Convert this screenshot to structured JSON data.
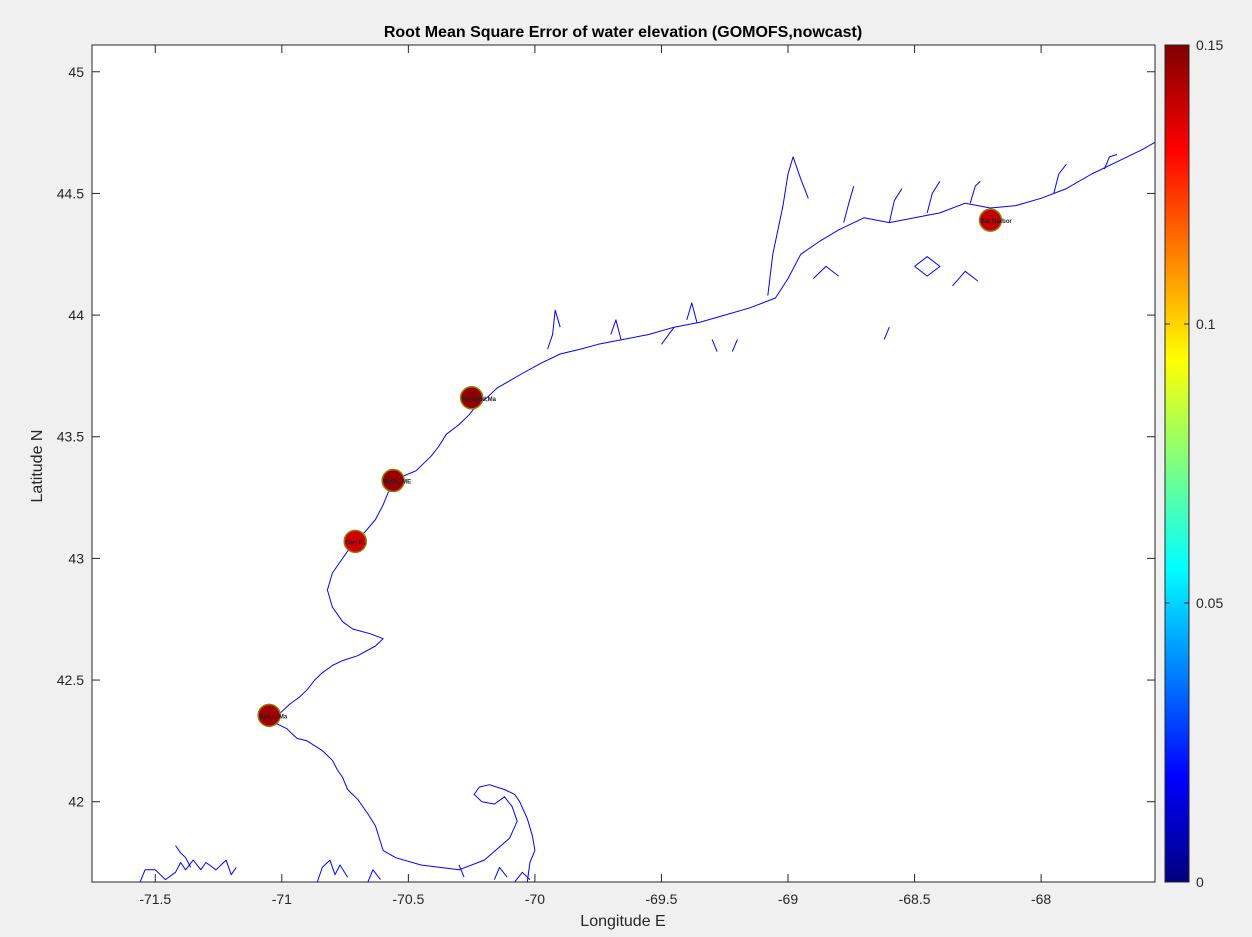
{
  "chart_data": {
    "type": "scatter",
    "title": "Root Mean Square Error of water elevation  (GOMOFS,nowcast)",
    "xlabel": "Longitude E",
    "ylabel": "Latitude N",
    "xlim": [
      -71.75,
      -67.55
    ],
    "ylim": [
      41.67,
      45.11
    ],
    "xticks": [
      -71.5,
      -71,
      -70.5,
      -70,
      -69.5,
      -69,
      -68.5,
      -68
    ],
    "xtick_labels": [
      "-71.5",
      "-71",
      "-70.5",
      "-70",
      "-69.5",
      "-69",
      "-68.5",
      "-68"
    ],
    "yticks": [
      42,
      42.5,
      43,
      43.5,
      44,
      44.5,
      45
    ],
    "ytick_labels": [
      "42",
      "42.5",
      "43",
      "43.5",
      "44",
      "44.5",
      "45"
    ],
    "grid": false,
    "colorbar": {
      "colormap": "jet",
      "clim": [
        0,
        0.15
      ],
      "ticks": [
        0,
        0.05,
        0.1,
        0.15
      ],
      "tick_labels": [
        "0",
        "0.05",
        "0.1",
        "0.15"
      ]
    },
    "stations": [
      {
        "label": "Bos..., Ma",
        "lon": -71.05,
        "lat": 42.355,
        "rmse": 0.145
      },
      {
        "label": "Fort P...",
        "lon": -70.71,
        "lat": 43.07,
        "rmse": 0.138
      },
      {
        "label": "Wells, ME",
        "lon": -70.56,
        "lat": 43.32,
        "rmse": 0.146
      },
      {
        "label": "Portland,Ma",
        "lon": -70.25,
        "lat": 43.66,
        "rmse": 0.147
      },
      {
        "label": "Bar Harbor",
        "lon": -68.2,
        "lat": 44.39,
        "rmse": 0.14
      }
    ],
    "coastline_color": "#0000ff",
    "coastline": [
      [
        [
          -71.56,
          41.67
        ],
        [
          -71.54,
          41.72
        ],
        [
          -71.5,
          41.72
        ],
        [
          -71.46,
          41.68
        ],
        [
          -71.42,
          41.71
        ],
        [
          -71.4,
          41.75
        ],
        [
          -71.38,
          41.72
        ],
        [
          -71.35,
          41.76
        ],
        [
          -71.32,
          41.72
        ],
        [
          -71.3,
          41.75
        ],
        [
          -71.26,
          41.72
        ],
        [
          -71.22,
          41.76
        ],
        [
          -71.2,
          41.7
        ],
        [
          -71.18,
          41.73
        ]
      ],
      [
        [
          -71.42,
          41.82
        ],
        [
          -71.4,
          41.79
        ],
        [
          -71.38,
          41.77
        ],
        [
          -71.36,
          41.73
        ]
      ],
      [
        [
          -70.86,
          41.67
        ],
        [
          -70.84,
          41.73
        ],
        [
          -70.81,
          41.76
        ],
        [
          -70.79,
          41.7
        ],
        [
          -70.77,
          41.74
        ],
        [
          -70.74,
          41.69
        ]
      ],
      [
        [
          -70.66,
          41.67
        ],
        [
          -70.64,
          41.72
        ],
        [
          -70.61,
          41.68
        ]
      ],
      [
        [
          -70.3,
          41.74
        ],
        [
          -70.28,
          41.69
        ]
      ],
      [
        [
          -70.16,
          41.68
        ],
        [
          -70.14,
          41.73
        ],
        [
          -70.11,
          41.69
        ]
      ],
      [
        [
          -70.08,
          41.67
        ],
        [
          -70.05,
          41.71
        ],
        [
          -70.02,
          41.68
        ]
      ],
      [
        [
          -70.03,
          41.67
        ],
        [
          -70.02,
          41.75
        ],
        [
          -70.0,
          41.8
        ],
        [
          -70.01,
          41.86
        ],
        [
          -70.03,
          41.93
        ],
        [
          -70.06,
          42.0
        ],
        [
          -70.08,
          42.03
        ],
        [
          -70.12,
          42.05
        ],
        [
          -70.18,
          42.07
        ],
        [
          -70.22,
          42.06
        ],
        [
          -70.24,
          42.03
        ],
        [
          -70.21,
          42.0
        ],
        [
          -70.16,
          41.99
        ],
        [
          -70.12,
          42.02
        ],
        [
          -70.09,
          41.98
        ],
        [
          -70.07,
          41.92
        ],
        [
          -70.1,
          41.85
        ],
        [
          -70.2,
          41.76
        ],
        [
          -70.3,
          41.72
        ],
        [
          -70.45,
          41.74
        ],
        [
          -70.55,
          41.77
        ],
        [
          -70.6,
          41.8
        ],
        [
          -70.63,
          41.9
        ],
        [
          -70.66,
          41.95
        ],
        [
          -70.68,
          41.98
        ],
        [
          -70.7,
          42.01
        ],
        [
          -70.74,
          42.05
        ],
        [
          -70.76,
          42.1
        ],
        [
          -70.78,
          42.13
        ],
        [
          -70.8,
          42.17
        ],
        [
          -70.84,
          42.21
        ],
        [
          -70.9,
          42.25
        ],
        [
          -70.94,
          42.26
        ],
        [
          -70.96,
          42.28
        ],
        [
          -70.98,
          42.3
        ],
        [
          -71.02,
          42.32
        ],
        [
          -71.05,
          42.33
        ],
        [
          -71.03,
          42.35
        ],
        [
          -71.0,
          42.37
        ],
        [
          -70.97,
          42.4
        ],
        [
          -70.93,
          42.43
        ],
        [
          -70.9,
          42.46
        ],
        [
          -70.87,
          42.5
        ],
        [
          -70.84,
          42.53
        ],
        [
          -70.8,
          42.56
        ],
        [
          -70.76,
          42.58
        ],
        [
          -70.7,
          42.6
        ],
        [
          -70.63,
          42.64
        ],
        [
          -70.6,
          42.67
        ],
        [
          -70.65,
          42.69
        ],
        [
          -70.72,
          42.71
        ],
        [
          -70.76,
          42.74
        ],
        [
          -70.8,
          42.8
        ],
        [
          -70.82,
          42.87
        ],
        [
          -70.8,
          42.94
        ],
        [
          -70.76,
          43.0
        ],
        [
          -70.72,
          43.06
        ],
        [
          -70.67,
          43.11
        ],
        [
          -70.63,
          43.16
        ],
        [
          -70.6,
          43.22
        ],
        [
          -70.58,
          43.27
        ],
        [
          -70.54,
          43.33
        ],
        [
          -70.47,
          43.36
        ],
        [
          -70.41,
          43.42
        ],
        [
          -70.38,
          43.46
        ],
        [
          -70.35,
          43.51
        ],
        [
          -70.3,
          43.55
        ],
        [
          -70.26,
          43.59
        ],
        [
          -70.23,
          43.63
        ],
        [
          -70.19,
          43.66
        ],
        [
          -70.15,
          43.7
        ],
        [
          -70.1,
          43.73
        ],
        [
          -70.05,
          43.76
        ],
        [
          -69.98,
          43.8
        ],
        [
          -69.9,
          43.84
        ],
        [
          -69.82,
          43.86
        ],
        [
          -69.75,
          43.88
        ],
        [
          -69.65,
          43.9
        ],
        [
          -69.55,
          43.92
        ],
        [
          -69.45,
          43.95
        ],
        [
          -69.35,
          43.97
        ],
        [
          -69.25,
          44.0
        ],
        [
          -69.15,
          44.03
        ],
        [
          -69.05,
          44.07
        ],
        [
          -69.0,
          44.15
        ],
        [
          -68.95,
          44.25
        ],
        [
          -68.88,
          44.3
        ],
        [
          -68.8,
          44.35
        ],
        [
          -68.7,
          44.4
        ],
        [
          -68.6,
          44.38
        ],
        [
          -68.5,
          44.4
        ],
        [
          -68.4,
          44.42
        ],
        [
          -68.3,
          44.46
        ],
        [
          -68.2,
          44.44
        ],
        [
          -68.1,
          44.45
        ],
        [
          -68.0,
          44.48
        ],
        [
          -67.9,
          44.52
        ],
        [
          -67.8,
          44.58
        ],
        [
          -67.7,
          44.63
        ],
        [
          -67.6,
          44.68
        ],
        [
          -67.55,
          44.71
        ]
      ],
      [
        [
          -69.95,
          43.86
        ],
        [
          -69.93,
          43.92
        ],
        [
          -69.92,
          44.02
        ],
        [
          -69.9,
          43.95
        ]
      ],
      [
        [
          -69.7,
          43.92
        ],
        [
          -69.68,
          43.98
        ],
        [
          -69.66,
          43.9
        ]
      ],
      [
        [
          -69.4,
          43.98
        ],
        [
          -69.38,
          44.05
        ],
        [
          -69.36,
          43.97
        ]
      ],
      [
        [
          -69.08,
          44.08
        ],
        [
          -69.06,
          44.25
        ],
        [
          -69.04,
          44.35
        ],
        [
          -69.02,
          44.45
        ],
        [
          -69.0,
          44.58
        ],
        [
          -68.98,
          44.65
        ],
        [
          -68.95,
          44.56
        ],
        [
          -68.92,
          44.48
        ]
      ],
      [
        [
          -68.78,
          44.38
        ],
        [
          -68.76,
          44.46
        ],
        [
          -68.74,
          44.53
        ]
      ],
      [
        [
          -68.6,
          44.38
        ],
        [
          -68.58,
          44.47
        ],
        [
          -68.55,
          44.52
        ]
      ],
      [
        [
          -68.45,
          44.42
        ],
        [
          -68.43,
          44.5
        ],
        [
          -68.4,
          44.55
        ]
      ],
      [
        [
          -68.28,
          44.46
        ],
        [
          -68.26,
          44.53
        ],
        [
          -68.24,
          44.55
        ]
      ],
      [
        [
          -67.95,
          44.5
        ],
        [
          -67.93,
          44.58
        ],
        [
          -67.9,
          44.62
        ]
      ],
      [
        [
          -67.75,
          44.6
        ],
        [
          -67.73,
          44.65
        ],
        [
          -67.7,
          44.66
        ]
      ],
      [
        [
          -68.5,
          44.2
        ],
        [
          -68.45,
          44.24
        ],
        [
          -68.4,
          44.2
        ],
        [
          -68.45,
          44.16
        ],
        [
          -68.5,
          44.2
        ]
      ],
      [
        [
          -68.35,
          44.12
        ],
        [
          -68.3,
          44.18
        ],
        [
          -68.25,
          44.14
        ]
      ],
      [
        [
          -68.9,
          44.15
        ],
        [
          -68.85,
          44.2
        ],
        [
          -68.8,
          44.16
        ]
      ],
      [
        [
          -69.2,
          43.9
        ],
        [
          -69.22,
          43.85
        ]
      ],
      [
        [
          -68.6,
          43.95
        ],
        [
          -68.62,
          43.9
        ]
      ],
      [
        [
          -69.45,
          43.95
        ],
        [
          -69.5,
          43.88
        ]
      ],
      [
        [
          -69.3,
          43.9
        ],
        [
          -69.28,
          43.85
        ]
      ]
    ]
  }
}
